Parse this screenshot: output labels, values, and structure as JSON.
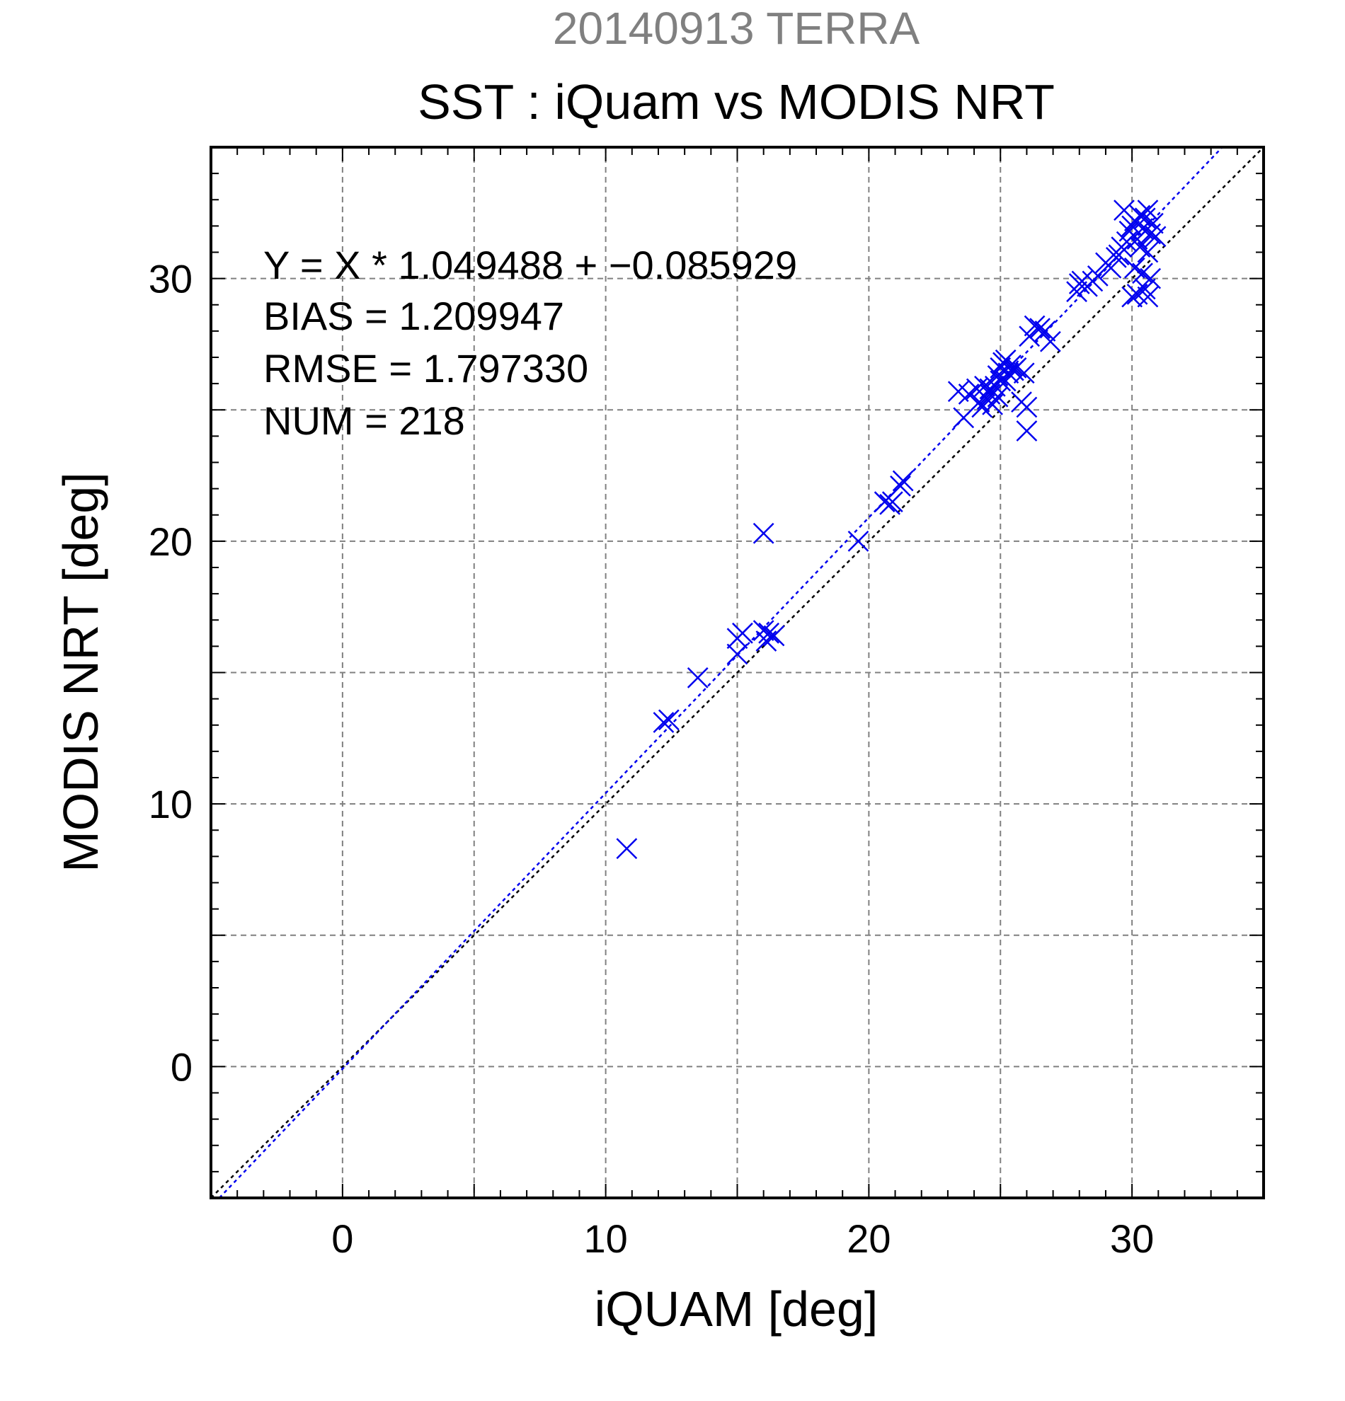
{
  "chart_data": {
    "type": "scatter",
    "title": "SST : iQuam vs MODIS NRT",
    "subtitle": "20140913 TERRA",
    "xlabel": "iQUAM [deg]",
    "ylabel": "MODIS NRT [deg]",
    "xlim": [
      -5,
      35
    ],
    "ylim": [
      -5,
      35
    ],
    "xticks": [
      0,
      10,
      20,
      30
    ],
    "yticks": [
      0,
      10,
      20,
      30
    ],
    "grid": true,
    "annotations": [
      "Y = X * 1.049488 + −0.085929",
      "BIAS = 1.209947",
      "RMSE = 1.797330",
      "NUM = 218"
    ],
    "regression": {
      "slope": 1.049488,
      "intercept": -0.085929
    },
    "colors": {
      "points": "#0000ee",
      "fit_line": "#0000ee",
      "identity_line": "#000000",
      "subtitle": "#808080"
    },
    "series": [
      {
        "marker": "x",
        "points": [
          [
            10.8,
            8.3
          ],
          [
            12.2,
            13.1
          ],
          [
            12.4,
            13.2
          ],
          [
            13.5,
            14.8
          ],
          [
            15.0,
            15.7
          ],
          [
            15.0,
            16.3
          ],
          [
            15.2,
            16.5
          ],
          [
            16.0,
            16.6
          ],
          [
            16.1,
            16.2
          ],
          [
            16.2,
            16.5
          ],
          [
            16.4,
            16.4
          ],
          [
            16.0,
            20.3
          ],
          [
            19.6,
            20.0
          ],
          [
            20.6,
            21.5
          ],
          [
            20.8,
            21.4
          ],
          [
            20.9,
            21.5
          ],
          [
            21.2,
            22.1
          ],
          [
            21.3,
            22.3
          ],
          [
            23.4,
            25.7
          ],
          [
            23.6,
            24.7
          ],
          [
            23.8,
            25.6
          ],
          [
            24.1,
            25.8
          ],
          [
            24.2,
            25.3
          ],
          [
            24.3,
            25.1
          ],
          [
            24.4,
            25.9
          ],
          [
            24.5,
            25.4
          ],
          [
            24.6,
            25.6
          ],
          [
            24.7,
            25.2
          ],
          [
            24.8,
            25.9
          ],
          [
            24.9,
            26.3
          ],
          [
            25.0,
            26.6
          ],
          [
            25.1,
            26.8
          ],
          [
            25.2,
            26.1
          ],
          [
            25.3,
            26.4
          ],
          [
            25.4,
            26.7
          ],
          [
            25.5,
            26.5
          ],
          [
            25.6,
            26.6
          ],
          [
            25.2,
            26.9
          ],
          [
            25.0,
            26.1
          ],
          [
            24.6,
            25.8
          ],
          [
            24.9,
            25.5
          ],
          [
            25.8,
            25.3
          ],
          [
            25.9,
            26.4
          ],
          [
            26.0,
            25.1
          ],
          [
            26.0,
            24.2
          ],
          [
            26.1,
            27.8
          ],
          [
            26.3,
            28.2
          ],
          [
            26.5,
            28.1
          ],
          [
            26.7,
            28.0
          ],
          [
            26.9,
            27.6
          ],
          [
            27.9,
            29.5
          ],
          [
            28.0,
            29.8
          ],
          [
            28.1,
            29.9
          ],
          [
            28.3,
            29.7
          ],
          [
            28.5,
            29.9
          ],
          [
            28.7,
            30.1
          ],
          [
            29.0,
            30.6
          ],
          [
            29.2,
            30.4
          ],
          [
            29.5,
            30.9
          ],
          [
            29.6,
            31.2
          ],
          [
            29.8,
            31.4
          ],
          [
            29.9,
            31.8
          ],
          [
            30.0,
            32.0
          ],
          [
            30.1,
            32.2
          ],
          [
            30.2,
            31.5
          ],
          [
            30.3,
            32.4
          ],
          [
            30.4,
            31.9
          ],
          [
            30.5,
            32.3
          ],
          [
            30.6,
            32.6
          ],
          [
            30.7,
            31.7
          ],
          [
            30.8,
            32.1
          ],
          [
            30.9,
            31.6
          ],
          [
            29.7,
            32.6
          ],
          [
            30.0,
            29.3
          ],
          [
            30.2,
            29.4
          ],
          [
            30.4,
            30.2
          ],
          [
            30.5,
            29.6
          ],
          [
            30.6,
            29.3
          ],
          [
            30.7,
            30.0
          ],
          [
            30.1,
            30.4
          ],
          [
            29.4,
            30.8
          ],
          [
            30.3,
            31.2
          ],
          [
            30.6,
            31.0
          ]
        ]
      }
    ]
  }
}
